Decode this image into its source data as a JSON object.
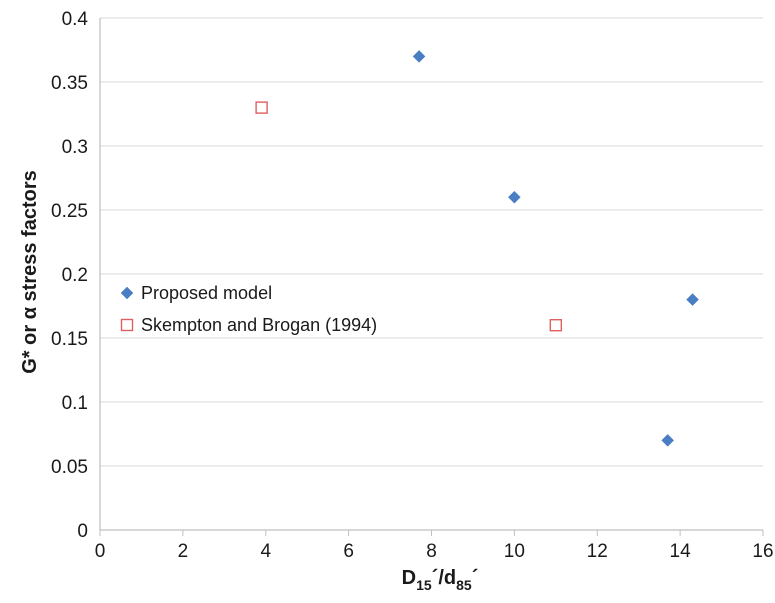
{
  "chart_data": {
    "type": "scatter",
    "title": "",
    "xlabel": {
      "main": "D",
      "sub1": "15",
      "mid": "´/d",
      "sub2": "85",
      "end": "´"
    },
    "ylabel": "G* or α stress factors",
    "xlim": [
      0,
      16
    ],
    "ylim": [
      0,
      0.4
    ],
    "xticks": [
      0,
      2,
      4,
      6,
      8,
      10,
      12,
      14,
      16
    ],
    "yticks": [
      0,
      0.05,
      0.1,
      0.15,
      0.2,
      0.25,
      0.3,
      0.35,
      0.4
    ],
    "xtick_labels": [
      "0",
      "2",
      "4",
      "6",
      "8",
      "10",
      "12",
      "14",
      "16"
    ],
    "ytick_labels": [
      "0",
      "0.05",
      "0.1",
      "0.15",
      "0.2",
      "0.25",
      "0.3",
      "0.35",
      "0.4"
    ],
    "grid": "horizontal",
    "legend_position": "left-middle",
    "series": [
      {
        "name": "Proposed model",
        "marker": "filled-diamond",
        "color": "#4a7ec4",
        "points": [
          {
            "x": 7.7,
            "y": 0.37
          },
          {
            "x": 10.0,
            "y": 0.26
          },
          {
            "x": 14.3,
            "y": 0.18
          },
          {
            "x": 13.7,
            "y": 0.07
          }
        ]
      },
      {
        "name": "Skempton and Brogan (1994)",
        "marker": "open-square",
        "color": "#e06060",
        "points": [
          {
            "x": 3.9,
            "y": 0.33
          },
          {
            "x": 11.0,
            "y": 0.16
          }
        ]
      }
    ]
  }
}
